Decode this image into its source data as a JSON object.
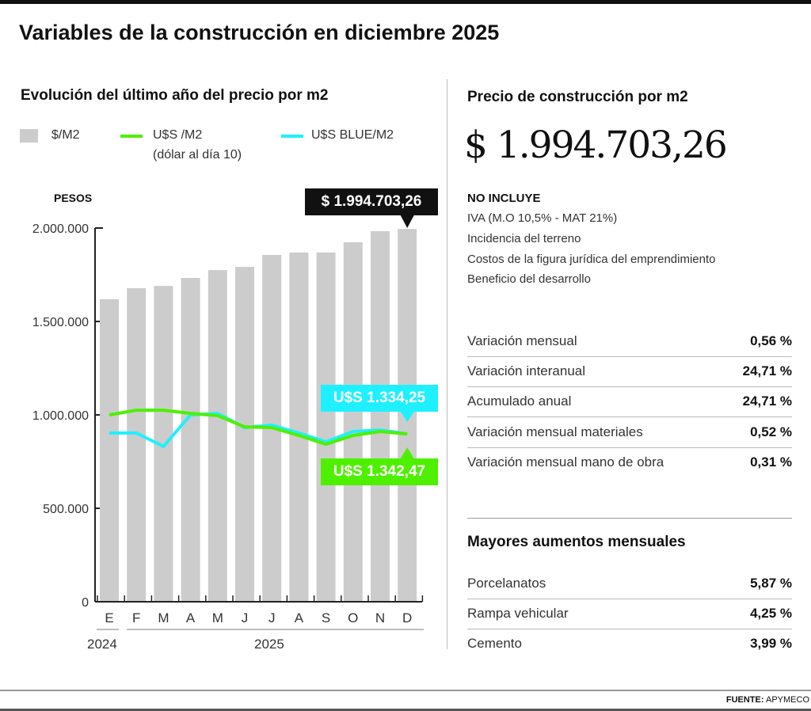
{
  "title": "Variables de la construcción en diciembre 2025",
  "left_title": "Evolución del último año del precio por m2",
  "right_title": "Precio de construcción por m2",
  "big_price": "$ 1.994.703,26",
  "no_incluye": {
    "heading": "NO INCLUYE",
    "items": [
      "IVA (M.O 10,5% - MAT 21%)",
      "Incidencia del terreno",
      "Costos de la figura jurídica del emprendimiento",
      "Beneficio del desarrollo"
    ]
  },
  "variaciones": [
    {
      "label": "Variación mensual",
      "value": "0,56 %"
    },
    {
      "label": "Variación interanual",
      "value": "24,71 %"
    },
    {
      "label": "Acumulado anual",
      "value": "24,71 %"
    },
    {
      "label": "Variación mensual materiales",
      "value": "0,52 %"
    },
    {
      "label": "Variación mensual mano de obra",
      "value": "0,31 %"
    }
  ],
  "mayores_title": "Mayores aumentos mensuales",
  "mayores": [
    {
      "label": "Porcelanatos",
      "value": "5,87 %"
    },
    {
      "label": "Rampa vehicular",
      "value": "4,25 %"
    },
    {
      "label": "Cemento",
      "value": "3,99 %"
    }
  ],
  "source_label": "FUENTE:",
  "source": "APYMECO",
  "colors": {
    "bar": "#cccccc",
    "green": "#4ef000",
    "cyan": "#1ef0ff",
    "black": "#111111"
  },
  "chart_data": {
    "type": "bar",
    "ylabel": "PESOS",
    "ylim": [
      0,
      2000000
    ],
    "yticks": [
      0,
      500000,
      1000000,
      1500000,
      2000000
    ],
    "ytick_labels": [
      "0",
      "500.000",
      "1.000.000",
      "1.500.000",
      "2.000.000"
    ],
    "categories": [
      "E",
      "F",
      "M",
      "A",
      "M",
      "J",
      "J",
      "A",
      "S",
      "O",
      "N",
      "D"
    ],
    "years": [
      "2024",
      "2025"
    ],
    "legend": {
      "bars": "$/M2",
      "green": "U$S /M2",
      "green_note": "(dólar al día 10)",
      "cyan": "U$S BLUE/M2"
    },
    "series": [
      {
        "name": "$/M2",
        "type": "bar",
        "values": [
          1619000,
          1678000,
          1690000,
          1733000,
          1775000,
          1792000,
          1856000,
          1869000,
          1869000,
          1924000,
          1983000,
          1994703.26
        ]
      },
      {
        "name": "U$S /M2",
        "type": "line",
        "values": [
          1000000,
          1025000,
          1025000,
          1008000,
          996000,
          936000,
          932000,
          890000,
          843000,
          890000,
          911000,
          898000
        ]
      },
      {
        "name": "U$S BLUE/M2",
        "type": "line",
        "values": [
          903000,
          903000,
          831000,
          1000000,
          1008000,
          932000,
          945000,
          903000,
          856000,
          911000,
          919000,
          898000
        ]
      }
    ],
    "callouts": {
      "bar": "$ 1.994.703,26",
      "cyan": "U$S 1.334,25",
      "green": "U$S 1.342,47"
    }
  }
}
